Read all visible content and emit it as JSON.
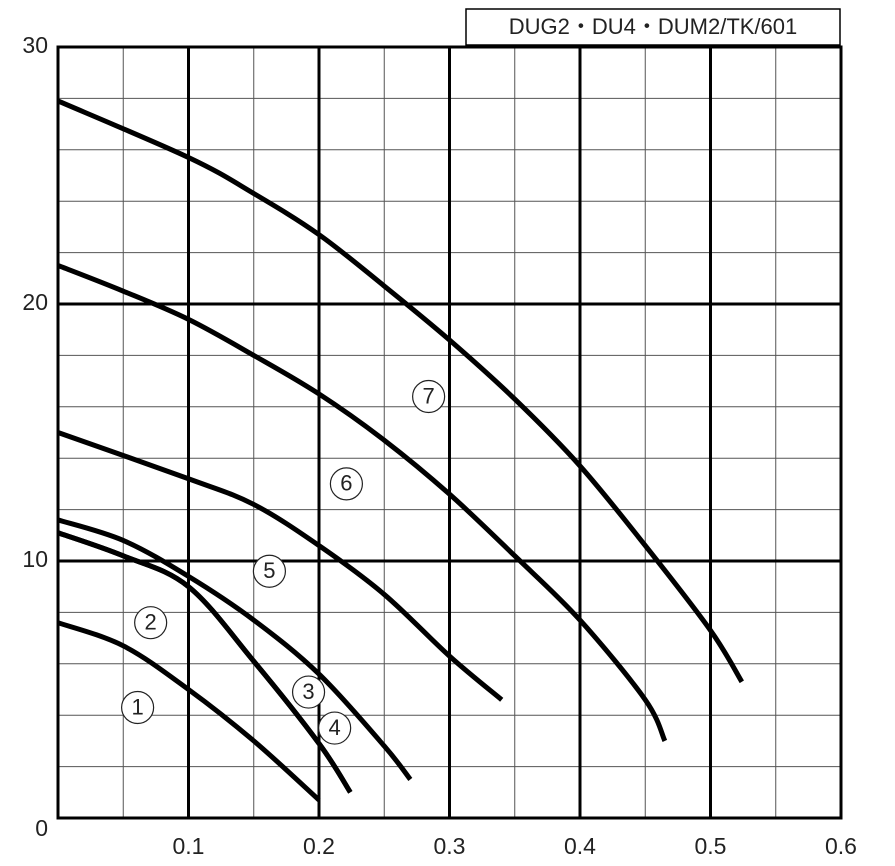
{
  "chart_data": {
    "type": "line",
    "title": "DUG2・DU4・DUM2/TK/601",
    "xlim": [
      0,
      0.6
    ],
    "ylim": [
      0,
      30
    ],
    "xticks": [
      0.1,
      0.2,
      0.3,
      0.4,
      0.5,
      0.6
    ],
    "yticks": [
      0,
      10,
      20,
      30
    ],
    "minor_xticks": [
      0.05,
      0.15,
      0.25,
      0.35,
      0.45,
      0.55
    ],
    "minor_yticks": [
      2,
      4,
      6,
      8,
      12,
      14,
      16,
      18,
      22,
      24,
      26,
      28
    ],
    "grid": true,
    "color": "#000000",
    "series": [
      {
        "name": "1",
        "x": [
          0,
          0.05,
          0.1,
          0.15,
          0.2
        ],
        "values": [
          7.6,
          6.7,
          5.0,
          3.0,
          0.7
        ],
        "label_x": 0.061,
        "label_y": 4.3
      },
      {
        "name": "2",
        "x": [
          0,
          0.05,
          0.1,
          0.15,
          0.2,
          0.224
        ],
        "values": [
          11.1,
          10.2,
          9.0,
          6.1,
          2.9,
          1.0
        ],
        "label_x": 0.071,
        "label_y": 7.6
      },
      {
        "name": "3",
        "x": [
          0,
          0.05,
          0.1,
          0.15,
          0.2,
          0.224
        ],
        "values": [
          11.1,
          10.2,
          9.0,
          6.1,
          2.9,
          1.0
        ],
        "label_x": 0.192,
        "label_y": 4.9
      },
      {
        "name": "4",
        "x": [
          0,
          0.05,
          0.1,
          0.15,
          0.2,
          0.25,
          0.27
        ],
        "values": [
          11.6,
          10.8,
          9.4,
          7.7,
          5.6,
          2.8,
          1.5
        ],
        "label_x": 0.212,
        "label_y": 3.5
      },
      {
        "name": "5",
        "x": [
          0,
          0.1,
          0.15,
          0.2,
          0.25,
          0.3,
          0.34
        ],
        "values": [
          15.0,
          13.2,
          12.2,
          10.6,
          8.7,
          6.3,
          4.6
        ],
        "label_x": 0.162,
        "label_y": 9.6
      },
      {
        "name": "6",
        "x": [
          0,
          0.05,
          0.1,
          0.15,
          0.2,
          0.25,
          0.3,
          0.35,
          0.4,
          0.45,
          0.465
        ],
        "values": [
          21.5,
          20.5,
          19.4,
          18.0,
          16.5,
          14.7,
          12.6,
          10.2,
          7.7,
          4.6,
          3.0
        ],
        "label_x": 0.221,
        "label_y": 13.0
      },
      {
        "name": "7",
        "x": [
          0,
          0.1,
          0.15,
          0.2,
          0.25,
          0.3,
          0.35,
          0.4,
          0.45,
          0.5,
          0.524
        ],
        "values": [
          27.9,
          25.7,
          24.3,
          22.7,
          20.7,
          18.6,
          16.3,
          13.7,
          10.6,
          7.3,
          5.3
        ],
        "label_x": 0.284,
        "label_y": 16.4
      }
    ]
  }
}
